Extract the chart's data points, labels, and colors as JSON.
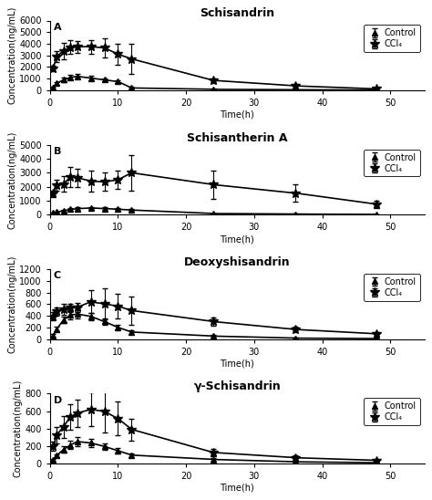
{
  "panels": [
    {
      "label": "A",
      "title": "Schisandrin",
      "ylabel": "Concentration(ng/mL)",
      "xlabel": "Time(h)",
      "ylim": [
        0,
        6000
      ],
      "yticks": [
        0,
        1000,
        2000,
        3000,
        4000,
        5000,
        6000
      ],
      "xlim": [
        0,
        55
      ],
      "xticks": [
        0,
        10,
        20,
        30,
        40,
        50
      ],
      "control": {
        "x": [
          0.5,
          1,
          2,
          3,
          4,
          6,
          8,
          10,
          12,
          24,
          36,
          48
        ],
        "y": [
          250,
          600,
          900,
          1100,
          1200,
          1050,
          900,
          750,
          200,
          80,
          50,
          20
        ],
        "yerr": [
          60,
          120,
          180,
          200,
          220,
          180,
          150,
          120,
          80,
          40,
          25,
          15
        ]
      },
      "ccl4": {
        "x": [
          0.5,
          1,
          2,
          3,
          4,
          6,
          8,
          10,
          12,
          24,
          36,
          48
        ],
        "y": [
          1900,
          2900,
          3400,
          3700,
          3750,
          3750,
          3650,
          3100,
          2700,
          850,
          380,
          120
        ],
        "yerr": [
          250,
          500,
          700,
          600,
          500,
          600,
          800,
          900,
          1300,
          200,
          180,
          70
        ]
      }
    },
    {
      "label": "B",
      "title": "Schisantherin A",
      "ylabel": "Concentration(ng/mL)",
      "xlabel": "Time(h)",
      "ylim": [
        0,
        5000
      ],
      "yticks": [
        0,
        1000,
        2000,
        3000,
        4000,
        5000
      ],
      "xlim": [
        0,
        55
      ],
      "xticks": [
        0,
        10,
        20,
        30,
        40,
        50
      ],
      "control": {
        "x": [
          0.5,
          1,
          2,
          3,
          4,
          6,
          8,
          10,
          12,
          24,
          36,
          48
        ],
        "y": [
          120,
          200,
          280,
          380,
          430,
          480,
          440,
          390,
          330,
          80,
          40,
          20
        ],
        "yerr": [
          30,
          40,
          50,
          70,
          90,
          90,
          70,
          60,
          50,
          20,
          15,
          10
        ]
      },
      "ccl4": {
        "x": [
          0.5,
          1,
          2,
          3,
          4,
          6,
          8,
          10,
          12,
          24,
          36,
          48
        ],
        "y": [
          1500,
          2100,
          2200,
          2700,
          2650,
          2400,
          2350,
          2500,
          3000,
          2150,
          1550,
          750
        ],
        "yerr": [
          220,
          400,
          550,
          750,
          650,
          750,
          650,
          650,
          1300,
          1000,
          650,
          250
        ]
      }
    },
    {
      "label": "C",
      "title": "Deoxyshisandrin",
      "ylabel": "Concentration(ng/mL)",
      "xlabel": "Time(h)",
      "ylim": [
        0,
        1200
      ],
      "yticks": [
        0,
        200,
        400,
        600,
        800,
        1000,
        1200
      ],
      "xlim": [
        0,
        55
      ],
      "xticks": [
        0,
        10,
        20,
        30,
        40,
        50
      ],
      "control": {
        "x": [
          0.5,
          1,
          2,
          3,
          4,
          6,
          8,
          10,
          12,
          24,
          36,
          48
        ],
        "y": [
          60,
          170,
          330,
          410,
          430,
          390,
          300,
          200,
          120,
          50,
          15,
          8
        ],
        "yerr": [
          20,
          35,
          55,
          75,
          75,
          65,
          55,
          38,
          28,
          18,
          8,
          4
        ]
      },
      "ccl4": {
        "x": [
          0.5,
          1,
          2,
          3,
          4,
          6,
          8,
          10,
          12,
          24,
          36,
          48
        ],
        "y": [
          390,
          475,
          510,
          535,
          545,
          640,
          605,
          565,
          490,
          300,
          165,
          90
        ],
        "yerr": [
          75,
          75,
          95,
          75,
          75,
          195,
          270,
          210,
          240,
          75,
          45,
          35
        ]
      }
    },
    {
      "label": "D",
      "title": "γ-Schisandrin",
      "ylabel": "Concentration(ng/mL)",
      "xlabel": "Time(h)",
      "ylim": [
        0,
        800
      ],
      "yticks": [
        0,
        200,
        400,
        600,
        800
      ],
      "xlim": [
        0,
        55
      ],
      "xticks": [
        0,
        10,
        20,
        30,
        40,
        50
      ],
      "control": {
        "x": [
          0.5,
          1,
          2,
          3,
          4,
          6,
          8,
          10,
          12,
          24,
          36,
          48
        ],
        "y": [
          40,
          90,
          160,
          210,
          250,
          235,
          195,
          145,
          95,
          45,
          18,
          8
        ],
        "yerr": [
          12,
          18,
          38,
          45,
          55,
          45,
          35,
          28,
          18,
          12,
          7,
          4
        ]
      },
      "ccl4": {
        "x": [
          0.5,
          1,
          2,
          3,
          4,
          6,
          8,
          10,
          12,
          24,
          36,
          48
        ],
        "y": [
          195,
          325,
          420,
          535,
          575,
          620,
          595,
          515,
          390,
          125,
          65,
          35
        ],
        "yerr": [
          55,
          95,
          125,
          145,
          155,
          195,
          245,
          195,
          125,
          45,
          28,
          18
        ]
      }
    }
  ],
  "line_color": "#000000",
  "control_marker": "^",
  "ccl4_marker": "*",
  "control_markersize": 5,
  "ccl4_markersize": 7,
  "linewidth": 1.2,
  "capsize": 2,
  "elinewidth": 0.8,
  "font_size": 7,
  "title_font_size": 9,
  "label_font_size": 7,
  "tick_labelsize": 7
}
